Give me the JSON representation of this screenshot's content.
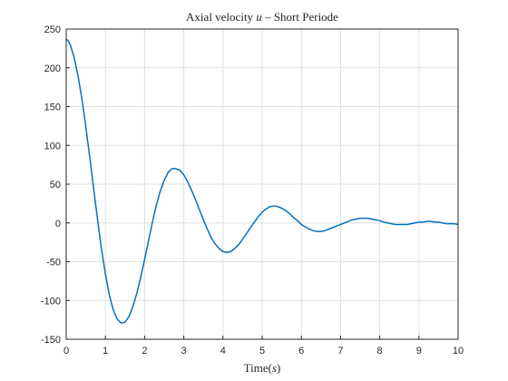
{
  "chart_data": {
    "type": "line",
    "title_parts": [
      "Axial velocity ",
      "u",
      " – Short Periode"
    ],
    "xlabel_parts": [
      "Time(",
      "s",
      ")"
    ],
    "ylabel": "",
    "xlim": [
      0,
      10
    ],
    "ylim": [
      -150,
      250
    ],
    "xticks": [
      "0",
      "1",
      "2",
      "3",
      "4",
      "5",
      "6",
      "7",
      "8",
      "9",
      "10"
    ],
    "yticks": [
      "-150",
      "-100",
      "-50",
      "0",
      "50",
      "100",
      "150",
      "200",
      "250"
    ],
    "grid": true,
    "line_color": "#0072bd",
    "series": [
      {
        "x": [
          0,
          0.05,
          0.1,
          0.2,
          0.3,
          0.4,
          0.5,
          0.6,
          0.7,
          0.8,
          0.9,
          1.0,
          1.1,
          1.2,
          1.3,
          1.4,
          1.5,
          1.6,
          1.7,
          1.8,
          1.9,
          2.0,
          2.1,
          2.2,
          2.3,
          2.4,
          2.5,
          2.6,
          2.7,
          2.8,
          2.9,
          3.0,
          3.1,
          3.2,
          3.3,
          3.4,
          3.5,
          3.6,
          3.7,
          3.8,
          3.9,
          4.0,
          4.1,
          4.2,
          4.3,
          4.4,
          4.5,
          4.6,
          4.7,
          4.8,
          4.9,
          5.0,
          5.1,
          5.2,
          5.3,
          5.4,
          5.5,
          5.6,
          5.7,
          5.8,
          5.9,
          6.0,
          6.1,
          6.2,
          6.3,
          6.4,
          6.5,
          6.6,
          6.7,
          6.8,
          6.9,
          7.0,
          7.1,
          7.2,
          7.3,
          7.4,
          7.5,
          7.6,
          7.7,
          7.8,
          7.9,
          8.0,
          8.1,
          8.2,
          8.3,
          8.4,
          8.5,
          8.6,
          8.7,
          8.8,
          8.9,
          9.0,
          9.1,
          9.2,
          9.3,
          9.4,
          9.5,
          9.6,
          9.7,
          9.8,
          9.9,
          10.0
        ],
        "y": [
          237,
          235,
          230,
          214,
          190,
          160,
          124,
          85,
          44,
          4,
          -34,
          -66,
          -93,
          -112,
          -124,
          -129,
          -128,
          -121,
          -108,
          -91,
          -70,
          -47,
          -23,
          1,
          23,
          41,
          55,
          65,
          70,
          70,
          68,
          62,
          53,
          42,
          30,
          17,
          4,
          -8,
          -19,
          -27,
          -33,
          -37,
          -38,
          -37,
          -33,
          -28,
          -21,
          -14,
          -6,
          1,
          8,
          14,
          18,
          21,
          22,
          21,
          19,
          16,
          12,
          7,
          3,
          -2,
          -5,
          -8,
          -10,
          -11,
          -11,
          -10,
          -8,
          -6,
          -4,
          -2,
          0,
          2,
          4,
          5,
          6,
          6,
          6,
          5,
          4,
          3,
          1,
          0,
          -1,
          -2,
          -2,
          -2,
          -2,
          -1,
          0,
          1,
          1,
          2,
          2,
          1,
          1,
          0,
          -1,
          -1,
          -1,
          -2
        ]
      }
    ]
  }
}
